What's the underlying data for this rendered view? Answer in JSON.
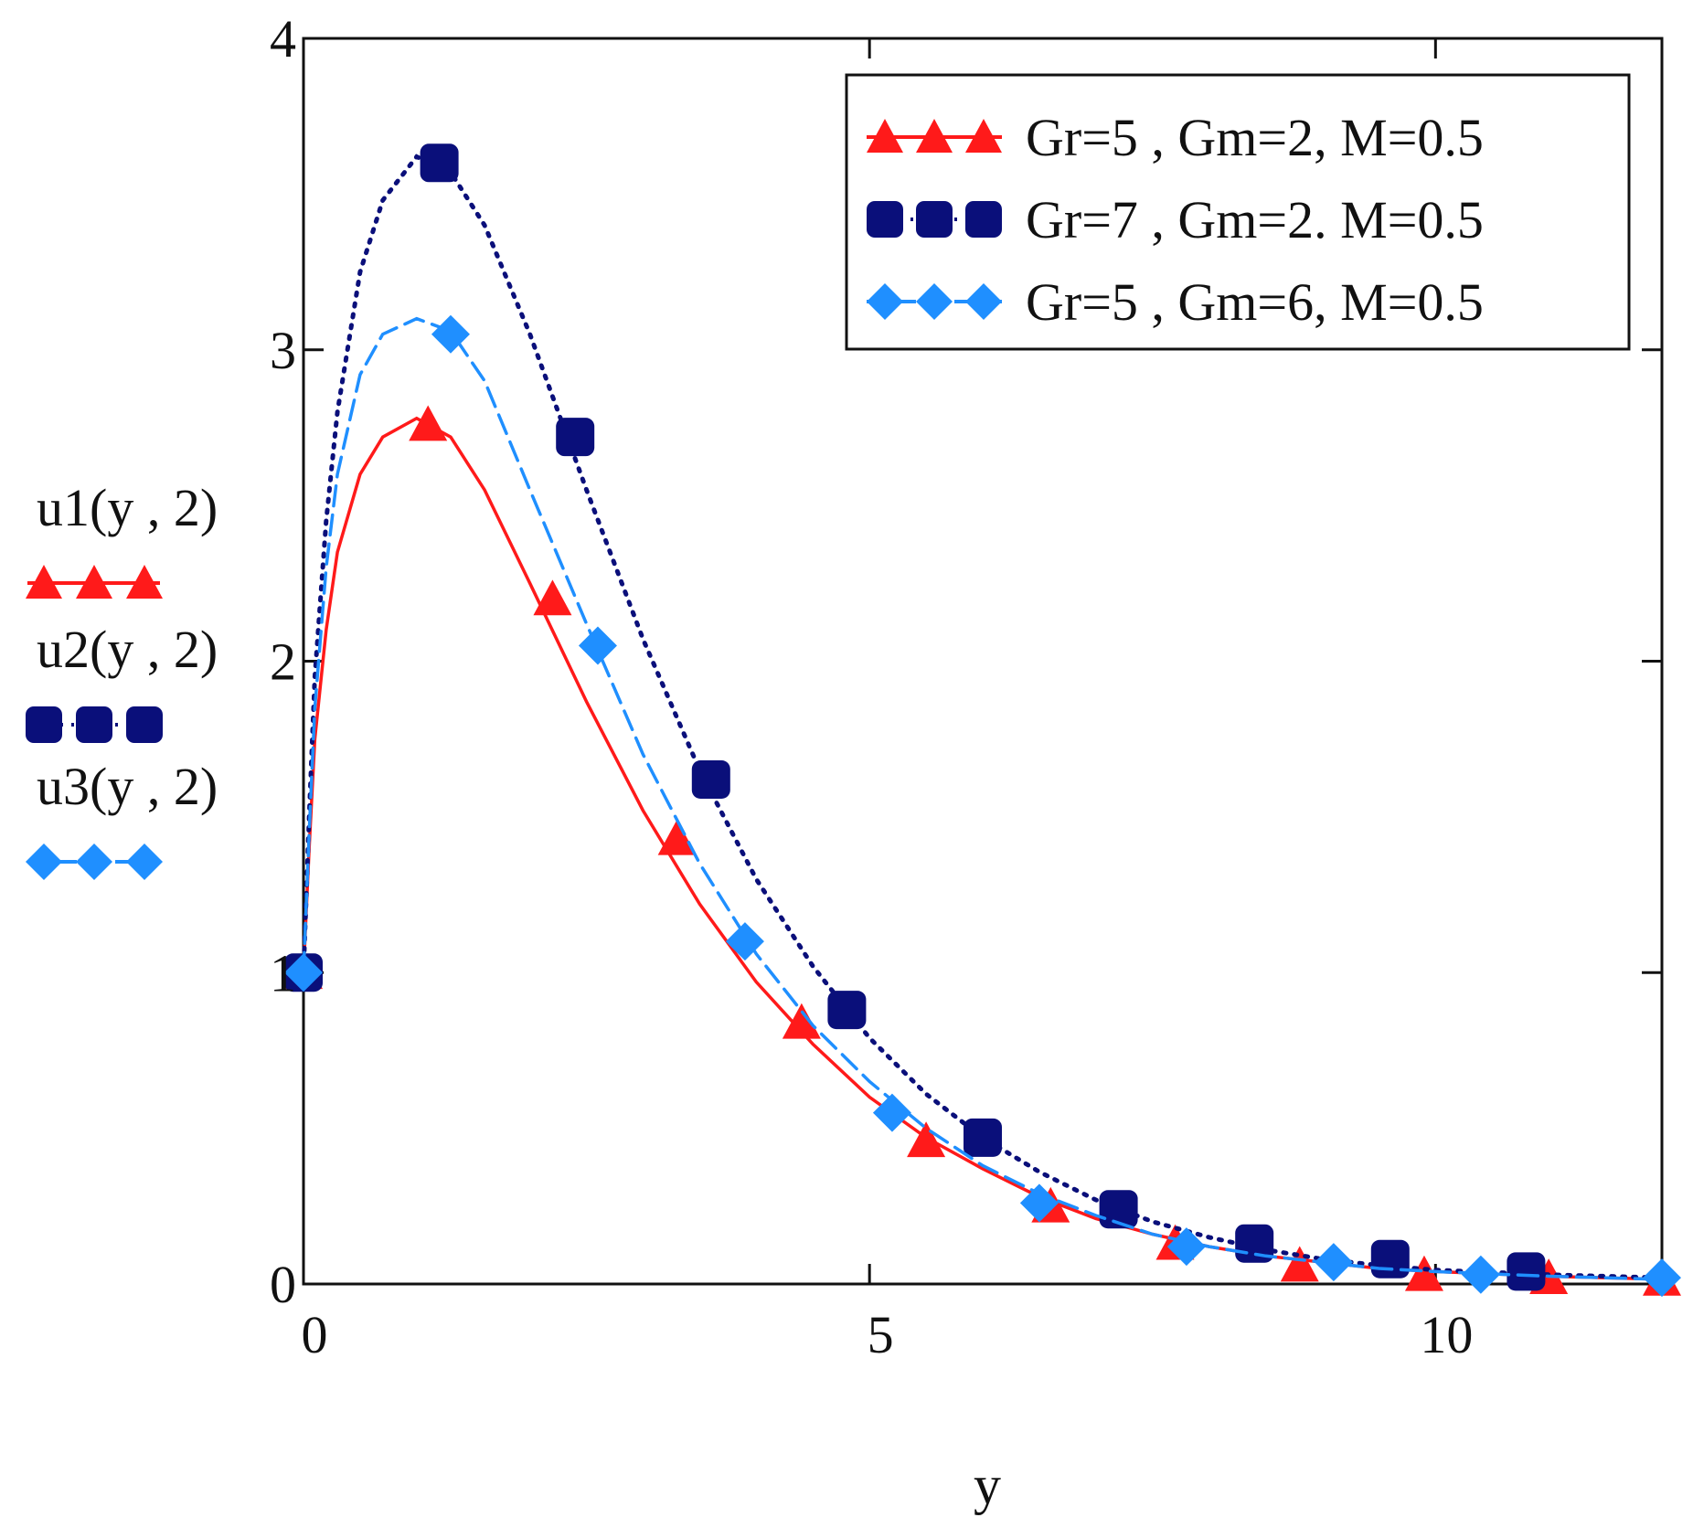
{
  "chart_data": {
    "type": "line",
    "title": "",
    "xlabel": "y",
    "ylabel_series": [
      "u1(y , 2)",
      "u2(y , 2)",
      "u3(y , 2)"
    ],
    "xlim": [
      0,
      12
    ],
    "ylim": [
      0,
      4
    ],
    "x_ticks": [
      0,
      5,
      10
    ],
    "y_ticks": [
      0,
      1,
      2,
      3,
      4
    ],
    "x_tick_labels": [
      "0",
      "5",
      "10"
    ],
    "y_tick_labels": [
      "0",
      "1",
      "2",
      "3",
      "4"
    ],
    "legend_position": "top-right",
    "series": [
      {
        "name": "Gr=5 , Gm=2, M=0.5",
        "ylabel": "u1(y , 2)",
        "color": "#ff1a1a",
        "marker": "triangle",
        "line_style": "solid",
        "curve": [
          [
            0,
            1.0
          ],
          [
            0.05,
            1.4
          ],
          [
            0.1,
            1.75
          ],
          [
            0.2,
            2.1
          ],
          [
            0.3,
            2.35
          ],
          [
            0.5,
            2.6
          ],
          [
            0.7,
            2.72
          ],
          [
            1.0,
            2.78
          ],
          [
            1.3,
            2.72
          ],
          [
            1.6,
            2.55
          ],
          [
            2.0,
            2.25
          ],
          [
            2.5,
            1.87
          ],
          [
            3.0,
            1.52
          ],
          [
            3.5,
            1.22
          ],
          [
            4.0,
            0.97
          ],
          [
            4.5,
            0.77
          ],
          [
            5.0,
            0.6
          ],
          [
            5.5,
            0.47
          ],
          [
            6.0,
            0.37
          ],
          [
            6.5,
            0.28
          ],
          [
            7.0,
            0.21
          ],
          [
            7.5,
            0.16
          ],
          [
            8.0,
            0.12
          ],
          [
            8.5,
            0.09
          ],
          [
            9.0,
            0.07
          ],
          [
            9.5,
            0.05
          ],
          [
            10.0,
            0.04
          ],
          [
            11.0,
            0.025
          ],
          [
            12.0,
            0.015
          ]
        ],
        "markers": [
          [
            0,
            1.0
          ],
          [
            1.1,
            2.76
          ],
          [
            2.2,
            2.2
          ],
          [
            3.3,
            1.43
          ],
          [
            4.4,
            0.84
          ],
          [
            5.5,
            0.46
          ],
          [
            6.6,
            0.25
          ],
          [
            7.7,
            0.13
          ],
          [
            8.8,
            0.06
          ],
          [
            9.9,
            0.03
          ],
          [
            11.0,
            0.02
          ],
          [
            12.0,
            0.015
          ]
        ]
      },
      {
        "name": "Gr=7 , Gm=2. M=0.5",
        "ylabel": "u2(y , 2)",
        "color": "#0a0f7a",
        "marker": "square",
        "line_style": "dotted",
        "curve": [
          [
            0,
            1.0
          ],
          [
            0.05,
            1.5
          ],
          [
            0.1,
            1.95
          ],
          [
            0.2,
            2.45
          ],
          [
            0.3,
            2.8
          ],
          [
            0.5,
            3.25
          ],
          [
            0.7,
            3.48
          ],
          [
            1.0,
            3.62
          ],
          [
            1.3,
            3.57
          ],
          [
            1.6,
            3.4
          ],
          [
            2.0,
            3.05
          ],
          [
            2.5,
            2.55
          ],
          [
            3.0,
            2.07
          ],
          [
            3.5,
            1.65
          ],
          [
            4.0,
            1.3
          ],
          [
            4.5,
            1.02
          ],
          [
            5.0,
            0.79
          ],
          [
            5.5,
            0.61
          ],
          [
            6.0,
            0.47
          ],
          [
            6.5,
            0.36
          ],
          [
            7.0,
            0.27
          ],
          [
            7.5,
            0.2
          ],
          [
            8.0,
            0.15
          ],
          [
            8.5,
            0.11
          ],
          [
            9.0,
            0.08
          ],
          [
            9.5,
            0.06
          ],
          [
            10.0,
            0.045
          ],
          [
            11.0,
            0.03
          ],
          [
            12.0,
            0.02
          ]
        ],
        "markers": [
          [
            0,
            1.0
          ],
          [
            1.2,
            3.6
          ],
          [
            2.4,
            2.72
          ],
          [
            3.6,
            1.62
          ],
          [
            4.8,
            0.88
          ],
          [
            6.0,
            0.47
          ],
          [
            7.2,
            0.24
          ],
          [
            8.4,
            0.13
          ],
          [
            9.6,
            0.08
          ],
          [
            10.8,
            0.04
          ]
        ]
      },
      {
        "name": "Gr=5 , Gm=6, M=0.5",
        "ylabel": "u3(y , 2)",
        "color": "#1f8fff",
        "marker": "diamond",
        "line_style": "dashed",
        "curve": [
          [
            0,
            1.0
          ],
          [
            0.05,
            1.45
          ],
          [
            0.1,
            1.85
          ],
          [
            0.2,
            2.3
          ],
          [
            0.3,
            2.6
          ],
          [
            0.5,
            2.92
          ],
          [
            0.7,
            3.05
          ],
          [
            1.0,
            3.1
          ],
          [
            1.3,
            3.06
          ],
          [
            1.6,
            2.9
          ],
          [
            2.0,
            2.55
          ],
          [
            2.5,
            2.12
          ],
          [
            3.0,
            1.7
          ],
          [
            3.5,
            1.35
          ],
          [
            4.0,
            1.06
          ],
          [
            4.5,
            0.83
          ],
          [
            5.0,
            0.65
          ],
          [
            5.5,
            0.5
          ],
          [
            6.0,
            0.38
          ],
          [
            6.5,
            0.29
          ],
          [
            7.0,
            0.22
          ],
          [
            7.5,
            0.16
          ],
          [
            8.0,
            0.12
          ],
          [
            8.5,
            0.09
          ],
          [
            9.0,
            0.07
          ],
          [
            9.5,
            0.05
          ],
          [
            10.0,
            0.04
          ],
          [
            11.0,
            0.025
          ],
          [
            12.0,
            0.015
          ]
        ],
        "markers": [
          [
            0,
            1.0
          ],
          [
            1.3,
            3.05
          ],
          [
            2.6,
            2.05
          ],
          [
            3.9,
            1.1
          ],
          [
            5.2,
            0.55
          ],
          [
            6.5,
            0.26
          ],
          [
            7.8,
            0.12
          ],
          [
            9.1,
            0.07
          ],
          [
            10.4,
            0.03
          ],
          [
            12.0,
            0.02
          ]
        ]
      }
    ]
  }
}
